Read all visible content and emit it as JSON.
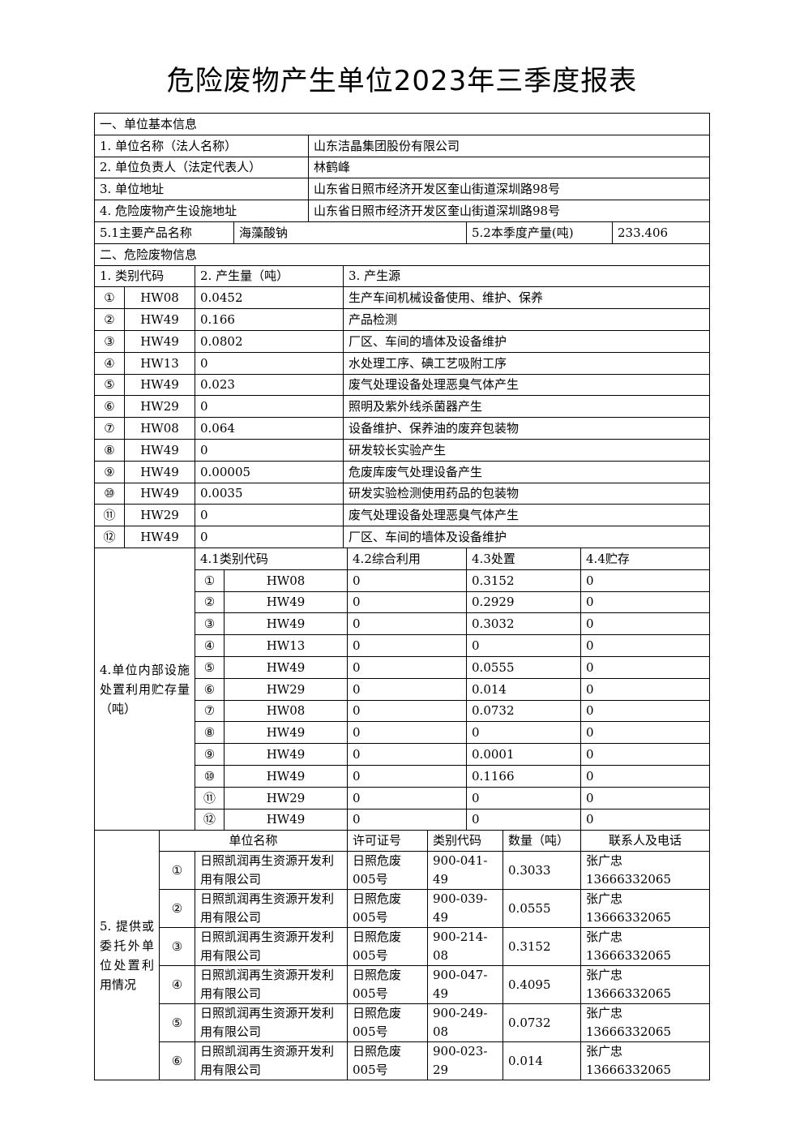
{
  "title": "危险废物产生单位2023年三季度报表",
  "section1": {
    "heading": "一、单位基本信息",
    "rows": [
      {
        "label": "1. 单位名称（法人名称）",
        "value": "山东洁晶集团股份有限公司"
      },
      {
        "label": "2. 单位负责人（法定代表人）",
        "value": "林鹤峰"
      },
      {
        "label": "3. 单位地址",
        "value": "山东省日照市经济开发区奎山街道深圳路98号"
      },
      {
        "label": "4. 危险废物产生设施地址",
        "value": "山东省日照市经济开发区奎山街道深圳路98号"
      }
    ],
    "product_label": "5.1主要产品名称",
    "product_value": "海藻酸钠",
    "output_label": "5.2本季度产量(吨)",
    "output_value": "233.406"
  },
  "section2": {
    "heading": "二、危险废物信息",
    "headers": [
      "1. 类别代码",
      "2. 产生量（吨）",
      "3. 产生源"
    ],
    "rows": [
      {
        "no": "①",
        "code": "HW08",
        "amount": "0.0452",
        "source": "生产车间机械设备使用、维护、保养"
      },
      {
        "no": "②",
        "code": "HW49",
        "amount": "0.166",
        "source": "产品检测"
      },
      {
        "no": "③",
        "code": "HW49",
        "amount": "0.0802",
        "source": "厂区、车间的墙体及设备维护"
      },
      {
        "no": "④",
        "code": "HW13",
        "amount": "0",
        "source": "水处理工序、碘工艺吸附工序"
      },
      {
        "no": "⑤",
        "code": "HW49",
        "amount": "0.023",
        "source": "废气处理设备处理恶臭气体产生"
      },
      {
        "no": "⑥",
        "code": "HW29",
        "amount": "0",
        "source": "照明及紫外线杀菌器产生"
      },
      {
        "no": "⑦",
        "code": "HW08",
        "amount": "0.064",
        "source": "设备维护、保养油的废弃包装物"
      },
      {
        "no": "⑧",
        "code": "HW49",
        "amount": "0",
        "source": "研发较长实验产生"
      },
      {
        "no": "⑨",
        "code": "HW49",
        "amount": "0.00005",
        "source": "危废库废气处理设备产生"
      },
      {
        "no": "⑩",
        "code": "HW49",
        "amount": "0.0035",
        "source": "研发实验检测使用药品的包装物"
      },
      {
        "no": "⑪",
        "code": "HW29",
        "amount": "0",
        "source": "废气处理设备处理恶臭气体产生"
      },
      {
        "no": "⑫",
        "code": "HW49",
        "amount": "0",
        "source": "厂区、车间的墙体及设备维护"
      }
    ]
  },
  "section4": {
    "label": "4.单位内部设施处置利用贮存量（吨）",
    "headers": [
      "4.1类别代码",
      "4.2综合利用",
      "4.3处置",
      "4.4贮存"
    ],
    "rows": [
      {
        "no": "①",
        "code": "HW08",
        "reuse": "0",
        "disposal": "0.3152",
        "storage": "0"
      },
      {
        "no": "②",
        "code": "HW49",
        "reuse": "0",
        "disposal": "0.2929",
        "storage": "0"
      },
      {
        "no": "③",
        "code": "HW49",
        "reuse": "0",
        "disposal": "0.3032",
        "storage": "0"
      },
      {
        "no": "④",
        "code": "HW13",
        "reuse": "0",
        "disposal": "0",
        "storage": "0"
      },
      {
        "no": "⑤",
        "code": "HW49",
        "reuse": "0",
        "disposal": "0.0555",
        "storage": "0"
      },
      {
        "no": "⑥",
        "code": "HW29",
        "reuse": "0",
        "disposal": "0.014",
        "storage": "0"
      },
      {
        "no": "⑦",
        "code": "HW08",
        "reuse": "0",
        "disposal": "0.0732",
        "storage": "0"
      },
      {
        "no": "⑧",
        "code": "HW49",
        "reuse": "0",
        "disposal": "0",
        "storage": "0"
      },
      {
        "no": "⑨",
        "code": "HW49",
        "reuse": "0",
        "disposal": "0.0001",
        "storage": "0"
      },
      {
        "no": "⑩",
        "code": "HW49",
        "reuse": "0",
        "disposal": "0.1166",
        "storage": "0"
      },
      {
        "no": "⑪",
        "code": "HW29",
        "reuse": "0",
        "disposal": "0",
        "storage": "0"
      },
      {
        "no": "⑫",
        "code": "HW49",
        "reuse": "0",
        "disposal": "0",
        "storage": "0"
      }
    ]
  },
  "section5": {
    "label": "5. 提供或委托外单位处置利用情况",
    "headers": [
      "单位名称",
      "许可证号",
      "类别代码",
      "数量（吨）",
      "联系人及电话"
    ],
    "rows": [
      {
        "no": "①",
        "company": "日照凯润再生资源开发利用有限公司",
        "permit": "日照危废005号",
        "code": "900-041-49",
        "qty": "0.3033",
        "contact": "张广忠 13666332065"
      },
      {
        "no": "②",
        "company": "日照凯润再生资源开发利用有限公司",
        "permit": "日照危废005号",
        "code": "900-039-49",
        "qty": "0.0555",
        "contact": "张广忠 13666332065"
      },
      {
        "no": "③",
        "company": "日照凯润再生资源开发利用有限公司",
        "permit": "日照危废005号",
        "code": "900-214-08",
        "qty": "0.3152",
        "contact": "张广忠 13666332065"
      },
      {
        "no": "④",
        "company": "日照凯润再生资源开发利用有限公司",
        "permit": "日照危废005号",
        "code": "900-047-49",
        "qty": "0.4095",
        "contact": "张广忠 13666332065"
      },
      {
        "no": "⑤",
        "company": "日照凯润再生资源开发利用有限公司",
        "permit": "日照危废005号",
        "code": "900-249-08",
        "qty": "0.0732",
        "contact": "张广忠 13666332065"
      },
      {
        "no": "⑥",
        "company": "日照凯润再生资源开发利用有限公司",
        "permit": "日照危废005号",
        "code": "900-023-29",
        "qty": "0.014",
        "contact": "张广忠 13666332065"
      }
    ]
  }
}
